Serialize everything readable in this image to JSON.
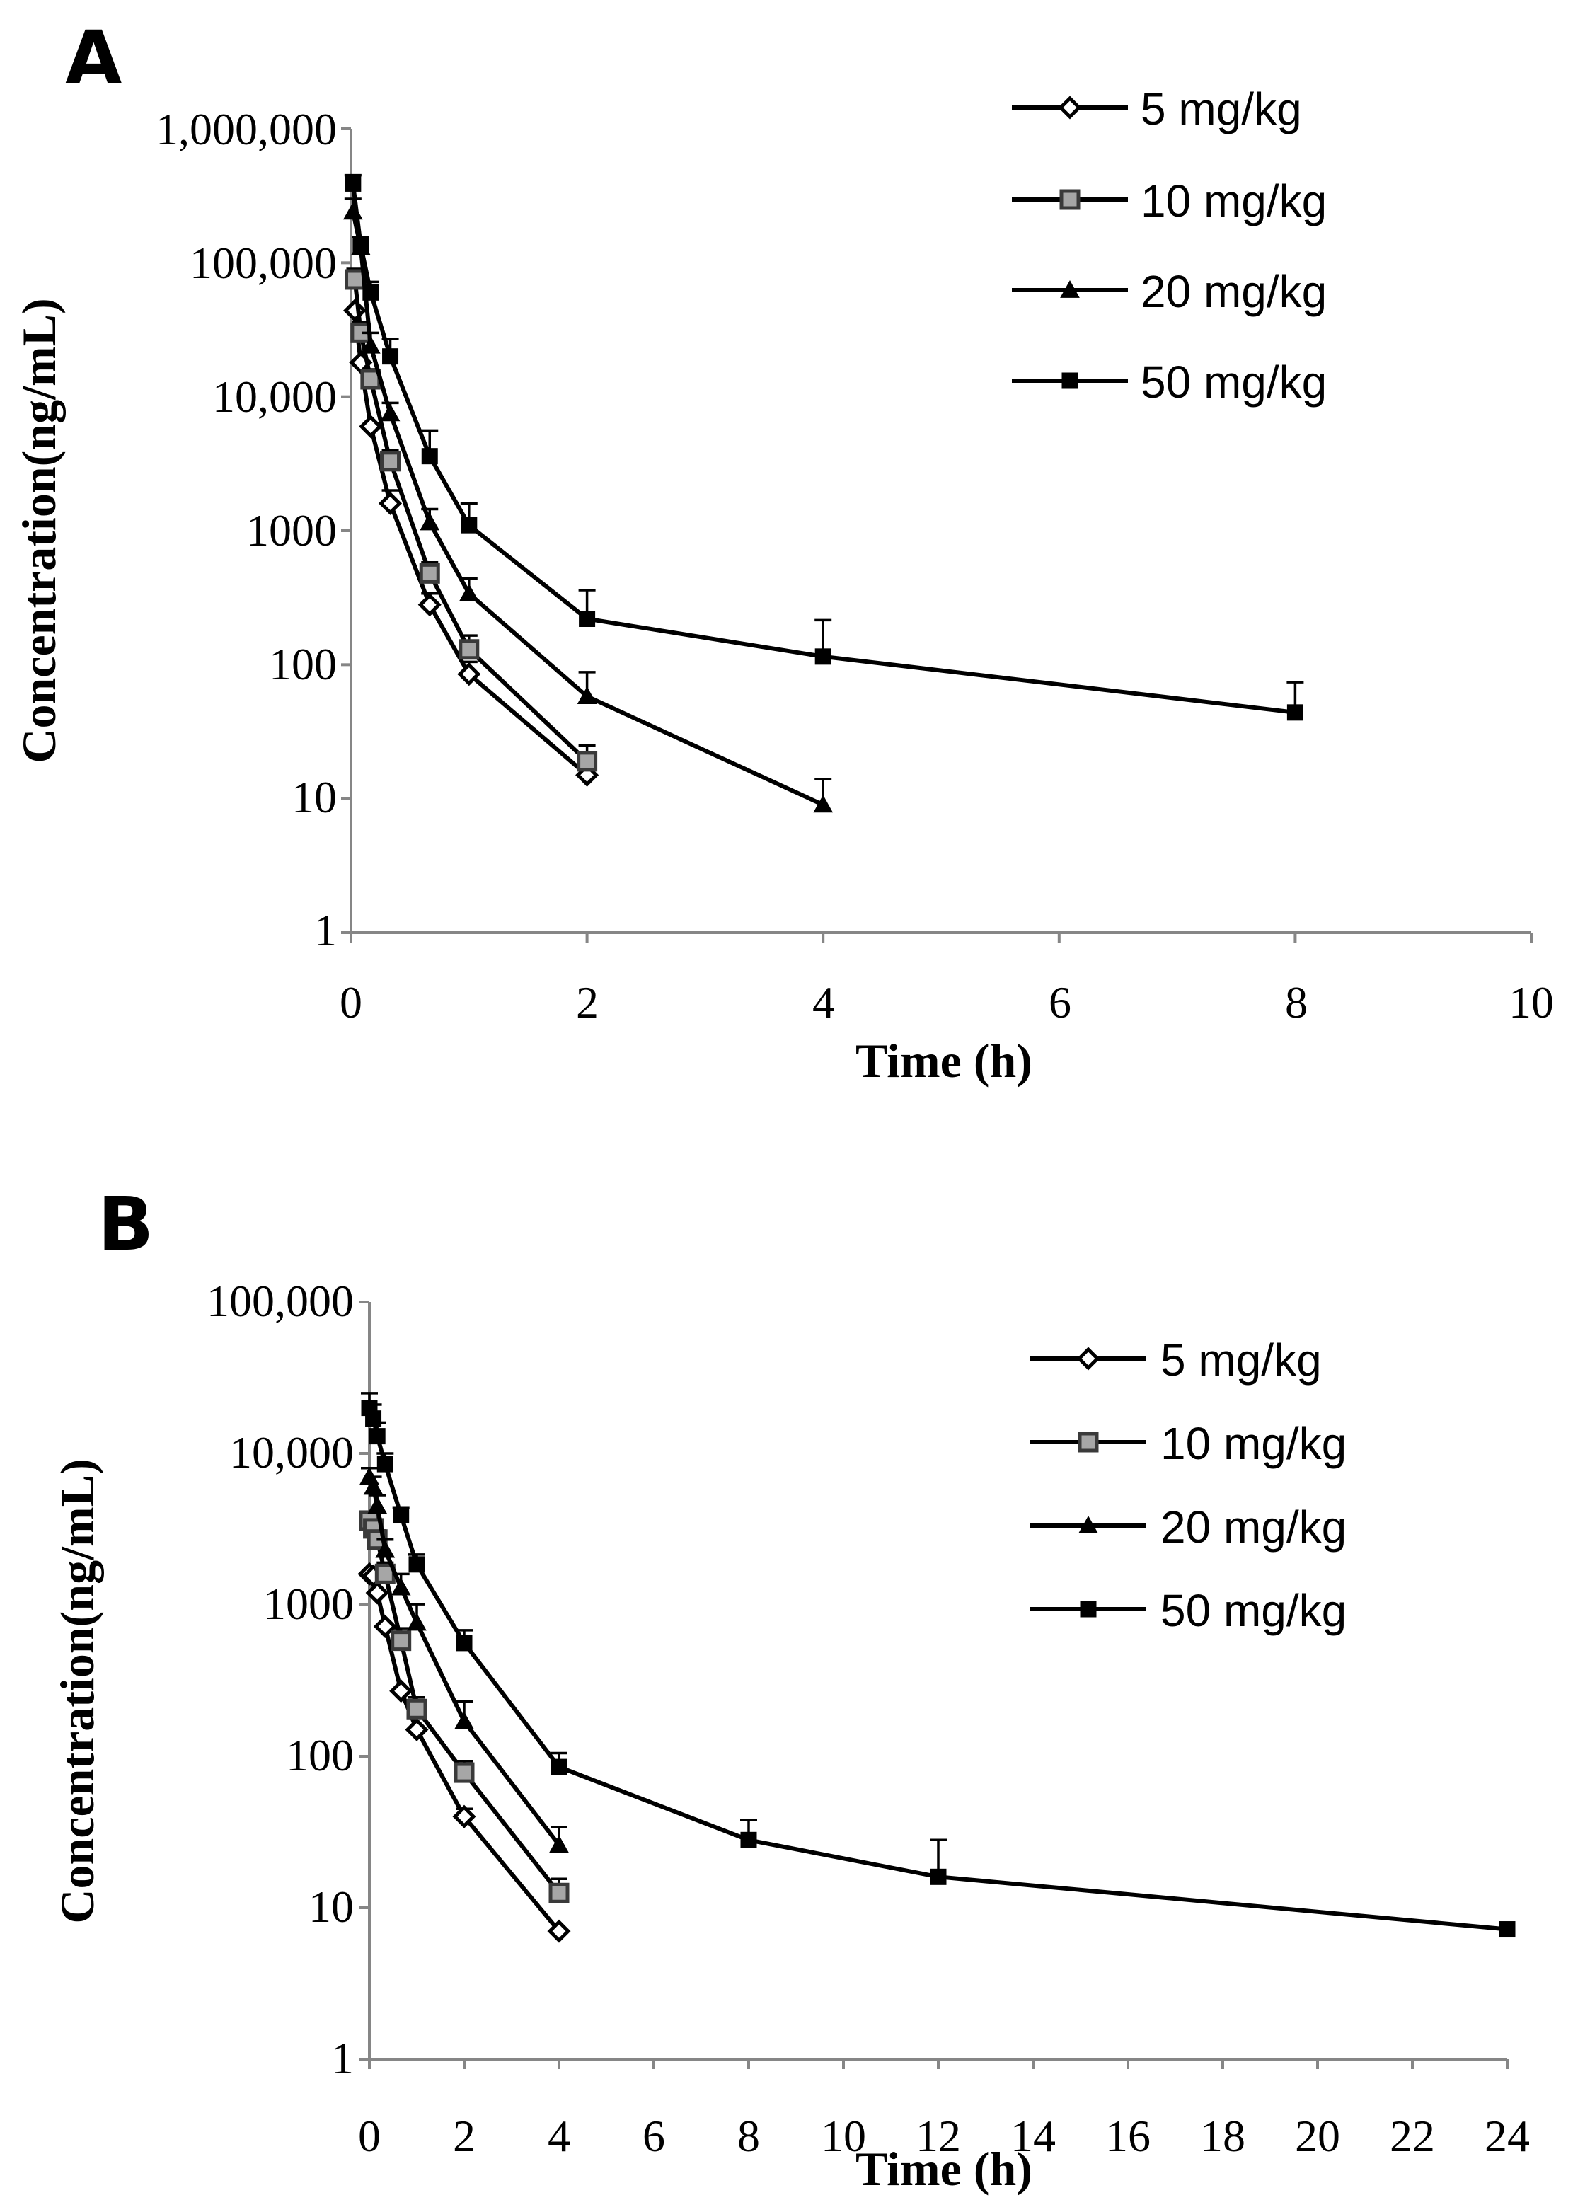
{
  "chart_data": [
    {
      "panel": "A",
      "type": "line",
      "xlabel": "Time (h)",
      "ylabel": "Concentration(ng/mL)",
      "yscale": "log",
      "xlim": [
        0,
        10
      ],
      "ylim": [
        1,
        1000000
      ],
      "xticks": [
        "0",
        "2",
        "4",
        "6",
        "8",
        "10"
      ],
      "yticks": [
        "1",
        "10",
        "100",
        "1000",
        "10,000",
        "100,000",
        "1,000,000"
      ],
      "legend_position": "top-right",
      "series": [
        {
          "name": "5 mg/kg",
          "marker": "diamond-open",
          "x": [
            0.033,
            0.083,
            0.167,
            0.333,
            0.667,
            1,
            2
          ],
          "y": [
            44000,
            18000,
            6000,
            1600,
            280,
            85,
            15
          ],
          "err": [
            0,
            0,
            0,
            400,
            60,
            20,
            5
          ]
        },
        {
          "name": "10 mg/kg",
          "marker": "square-gray",
          "x": [
            0.033,
            0.083,
            0.167,
            0.333,
            0.667,
            1,
            2
          ],
          "y": [
            75000,
            30000,
            13500,
            3300,
            480,
            130,
            19
          ],
          "err": [
            15000,
            6000,
            2500,
            700,
            100,
            35,
            6
          ]
        },
        {
          "name": "20 mg/kg",
          "marker": "triangle",
          "x": [
            0.017,
            0.083,
            0.167,
            0.333,
            0.667,
            1,
            2,
            4
          ],
          "y": [
            240000,
            130000,
            24000,
            7500,
            1150,
            340,
            58,
            9
          ],
          "err": [
            60000,
            25000,
            6000,
            1500,
            300,
            100,
            30,
            5
          ]
        },
        {
          "name": "50 mg/kg",
          "marker": "square-black",
          "x": [
            0.017,
            0.083,
            0.167,
            0.333,
            0.667,
            1,
            2,
            4,
            8
          ],
          "y": [
            390000,
            135000,
            60000,
            20000,
            3600,
            1100,
            220,
            115,
            44
          ],
          "err": [
            60000,
            20000,
            12000,
            7000,
            2000,
            500,
            140,
            100,
            30
          ]
        }
      ]
    },
    {
      "panel": "B",
      "type": "line",
      "xlabel": "Time (h)",
      "ylabel": "Concentration(ng/mL)",
      "yscale": "log",
      "xlim": [
        0,
        24
      ],
      "ylim": [
        1,
        100000
      ],
      "xticks": [
        "0",
        "2",
        "4",
        "6",
        "8",
        "10",
        "12",
        "14",
        "16",
        "18",
        "20",
        "22",
        "24"
      ],
      "yticks": [
        "1",
        "10",
        "100",
        "1000",
        "10,000",
        "100,000"
      ],
      "legend_position": "top-right",
      "series": [
        {
          "name": "5 mg/kg",
          "marker": "diamond-open",
          "x": [
            0,
            0.083,
            0.167,
            0.333,
            0.667,
            1,
            2,
            4
          ],
          "y": [
            1600,
            1550,
            1200,
            720,
            270,
            150,
            40,
            7
          ],
          "err": [
            0,
            0,
            0,
            0,
            0,
            0,
            5,
            0
          ]
        },
        {
          "name": "10 mg/kg",
          "marker": "square-gray",
          "x": [
            0,
            0.083,
            0.167,
            0.333,
            0.667,
            1,
            2,
            4
          ],
          "y": [
            3600,
            3200,
            2700,
            1600,
            580,
            205,
            78,
            12.5
          ],
          "err": [
            500,
            500,
            400,
            300,
            120,
            40,
            15,
            3
          ]
        },
        {
          "name": "20 mg/kg",
          "marker": "triangle",
          "x": [
            0,
            0.083,
            0.167,
            0.333,
            0.667,
            1,
            2,
            4
          ],
          "y": [
            7000,
            6000,
            4500,
            2300,
            1300,
            760,
            170,
            26
          ],
          "err": [
            1000,
            1000,
            800,
            400,
            300,
            250,
            60,
            8
          ]
        },
        {
          "name": "50 mg/kg",
          "marker": "square-black",
          "x": [
            0,
            0.083,
            0.167,
            0.333,
            0.667,
            1,
            2,
            4,
            8,
            12,
            24
          ],
          "y": [
            20000,
            17000,
            13000,
            8500,
            3900,
            1850,
            560,
            85,
            28,
            16,
            7.2
          ],
          "err": [
            5000,
            4000,
            3000,
            1500,
            500,
            300,
            120,
            20,
            10,
            12,
            0
          ]
        }
      ]
    }
  ]
}
